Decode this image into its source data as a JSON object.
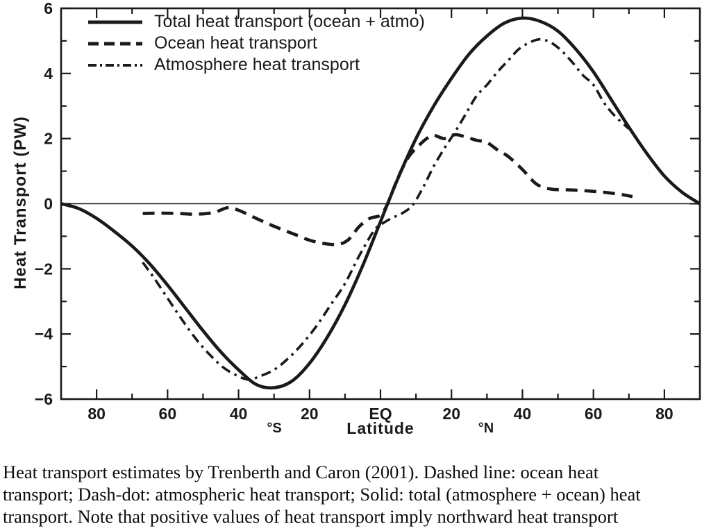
{
  "figure": {
    "ylabel": "Heat Transport (PW)",
    "xlabel": "Latitude",
    "south_label": "°S",
    "north_label": "°N",
    "line_color": "#1a1a1a"
  },
  "legend": {
    "items": [
      {
        "label": "Total heat transport (ocean + atmo)",
        "style": "solid"
      },
      {
        "label": "Ocean heat transport",
        "style": "dashed"
      },
      {
        "label": "Atmosphere heat transport",
        "style": "dashdot"
      }
    ]
  },
  "caption": {
    "lines": [
      "Heat transport estimates by Trenberth and Caron (2001).  Dashed line: ocean heat",
      "transport; Dash-dot: atmospheric heat transport; Solid: total (atmosphere + ocean) heat",
      "transport.  Note that positive values of heat transport imply northward heat transport"
    ]
  },
  "chart_data": {
    "type": "line",
    "title": "",
    "xlabel": "Latitude",
    "ylabel": "Heat Transport (PW)",
    "units": "PW",
    "xlim": [
      -90,
      90
    ],
    "ylim": [
      -6,
      6
    ],
    "grid": false,
    "zero_line": true,
    "legend_position": "top-left",
    "x_major_ticks": [
      -80,
      -60,
      -40,
      -20,
      0,
      20,
      40,
      60,
      80
    ],
    "x_tick_labels": [
      "80",
      "60",
      "40",
      "20",
      "EQ",
      "20",
      "40",
      "60",
      "80"
    ],
    "x_minor_ticks": [
      -70,
      -50,
      -30,
      -10,
      10,
      30,
      50,
      70
    ],
    "y_major_ticks": [
      -6,
      -4,
      -2,
      0,
      2,
      4,
      6
    ],
    "y_minor_ticks": [
      -5,
      -3,
      -1,
      1,
      3,
      5
    ],
    "series": [
      {
        "name": "Total heat transport (ocean + atmo)",
        "style": "solid",
        "x": [
          -90,
          -85,
          -80,
          -75,
          -70,
          -65,
          -60,
          -55,
          -50,
          -45,
          -40,
          -35,
          -30,
          -25,
          -20,
          -15,
          -10,
          -5,
          0,
          5,
          10,
          15,
          20,
          25,
          30,
          35,
          40,
          45,
          50,
          55,
          60,
          65,
          70,
          75,
          80,
          85,
          90
        ],
        "y": [
          0,
          -0.15,
          -0.45,
          -0.85,
          -1.3,
          -1.85,
          -2.5,
          -3.2,
          -3.9,
          -4.55,
          -5.1,
          -5.55,
          -5.65,
          -5.45,
          -4.9,
          -4.1,
          -3.1,
          -1.9,
          -0.55,
          0.8,
          2.0,
          3.0,
          3.85,
          4.6,
          5.15,
          5.55,
          5.7,
          5.6,
          5.3,
          4.75,
          4.05,
          3.2,
          2.35,
          1.55,
          0.85,
          0.35,
          0
        ]
      },
      {
        "name": "Ocean heat transport",
        "style": "dashed",
        "x": [
          -67,
          -62,
          -57,
          -52,
          -47,
          -43,
          -40,
          -36,
          -32,
          -28,
          -24,
          -20,
          -16,
          -12,
          -9,
          -6,
          -3,
          0,
          2,
          4,
          6,
          8,
          10,
          13,
          15,
          18,
          21,
          24,
          27,
          30,
          33,
          36,
          40,
          44,
          48,
          52,
          56,
          60,
          64,
          68,
          71
        ],
        "y": [
          -0.3,
          -0.29,
          -0.3,
          -0.32,
          -0.27,
          -0.12,
          -0.2,
          -0.4,
          -0.6,
          -0.78,
          -0.95,
          -1.12,
          -1.22,
          -1.25,
          -1.1,
          -0.7,
          -0.45,
          -0.35,
          0.0,
          0.55,
          1.05,
          1.45,
          1.7,
          2.0,
          2.1,
          2.0,
          2.12,
          2.05,
          1.95,
          1.88,
          1.65,
          1.45,
          1.05,
          0.6,
          0.45,
          0.43,
          0.41,
          0.38,
          0.34,
          0.28,
          0.22
        ]
      },
      {
        "name": "Atmosphere heat transport",
        "style": "dashdot",
        "x": [
          -67,
          -64,
          -60,
          -56,
          -52,
          -48,
          -44,
          -40,
          -37,
          -34,
          -30,
          -26,
          -22,
          -18,
          -14,
          -10,
          -6,
          -2,
          0,
          3,
          6,
          9,
          12,
          15,
          18,
          21,
          24,
          27,
          30,
          33,
          36,
          39,
          42,
          45,
          48,
          51,
          54,
          57,
          60,
          63,
          66,
          70
        ],
        "y": [
          -1.8,
          -2.25,
          -2.9,
          -3.55,
          -4.15,
          -4.65,
          -5.05,
          -5.3,
          -5.4,
          -5.3,
          -5.1,
          -4.75,
          -4.3,
          -3.75,
          -3.1,
          -2.45,
          -1.6,
          -0.85,
          -0.65,
          -0.45,
          -0.3,
          -0.05,
          0.5,
          1.15,
          1.7,
          2.2,
          2.75,
          3.3,
          3.65,
          4.05,
          4.4,
          4.75,
          4.95,
          5.05,
          4.95,
          4.7,
          4.35,
          3.95,
          3.65,
          3.1,
          2.7,
          2.3
        ]
      }
    ]
  }
}
